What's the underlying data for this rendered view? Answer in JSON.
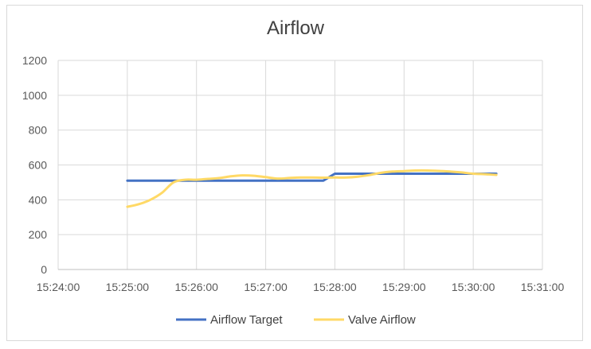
{
  "chart_data": {
    "type": "line",
    "title": "Airflow",
    "xlabel": "",
    "ylabel": "",
    "x_tick_labels": [
      "15:24:00",
      "15:25:00",
      "15:26:00",
      "15:27:00",
      "15:28:00",
      "15:29:00",
      "15:30:00",
      "15:31:00"
    ],
    "y_tick_labels": [
      "0",
      "200",
      "400",
      "600",
      "800",
      "1000",
      "1200"
    ],
    "xlim": [
      "15:24:00",
      "15:31:00"
    ],
    "ylim": [
      0,
      1200
    ],
    "grid": true,
    "legend_position": "bottom",
    "series": [
      {
        "name": "Airflow Target",
        "color": "#4472c4",
        "points": [
          {
            "x": "15:25:00",
            "y": 510
          },
          {
            "x": "15:27:50",
            "y": 510
          },
          {
            "x": "15:28:00",
            "y": 550
          },
          {
            "x": "15:30:20",
            "y": 550
          }
        ]
      },
      {
        "name": "Valve Airflow",
        "color": "#ffd966",
        "points": [
          {
            "x": "15:25:00",
            "y": 360
          },
          {
            "x": "15:25:10",
            "y": 375
          },
          {
            "x": "15:25:20",
            "y": 400
          },
          {
            "x": "15:25:30",
            "y": 440
          },
          {
            "x": "15:25:40",
            "y": 500
          },
          {
            "x": "15:25:50",
            "y": 515
          },
          {
            "x": "15:26:00",
            "y": 515
          },
          {
            "x": "15:26:10",
            "y": 520
          },
          {
            "x": "15:26:20",
            "y": 525
          },
          {
            "x": "15:26:30",
            "y": 535
          },
          {
            "x": "15:26:40",
            "y": 540
          },
          {
            "x": "15:26:50",
            "y": 538
          },
          {
            "x": "15:27:00",
            "y": 530
          },
          {
            "x": "15:27:10",
            "y": 522
          },
          {
            "x": "15:27:20",
            "y": 525
          },
          {
            "x": "15:27:30",
            "y": 528
          },
          {
            "x": "15:27:40",
            "y": 528
          },
          {
            "x": "15:27:50",
            "y": 527
          },
          {
            "x": "15:28:00",
            "y": 528
          },
          {
            "x": "15:28:10",
            "y": 528
          },
          {
            "x": "15:28:20",
            "y": 533
          },
          {
            "x": "15:28:30",
            "y": 542
          },
          {
            "x": "15:28:40",
            "y": 555
          },
          {
            "x": "15:28:50",
            "y": 562
          },
          {
            "x": "15:29:00",
            "y": 565
          },
          {
            "x": "15:29:10",
            "y": 568
          },
          {
            "x": "15:29:20",
            "y": 568
          },
          {
            "x": "15:29:30",
            "y": 566
          },
          {
            "x": "15:29:40",
            "y": 562
          },
          {
            "x": "15:29:50",
            "y": 557
          },
          {
            "x": "15:30:00",
            "y": 550
          },
          {
            "x": "15:30:10",
            "y": 547
          },
          {
            "x": "15:30:20",
            "y": 543
          }
        ]
      }
    ]
  }
}
